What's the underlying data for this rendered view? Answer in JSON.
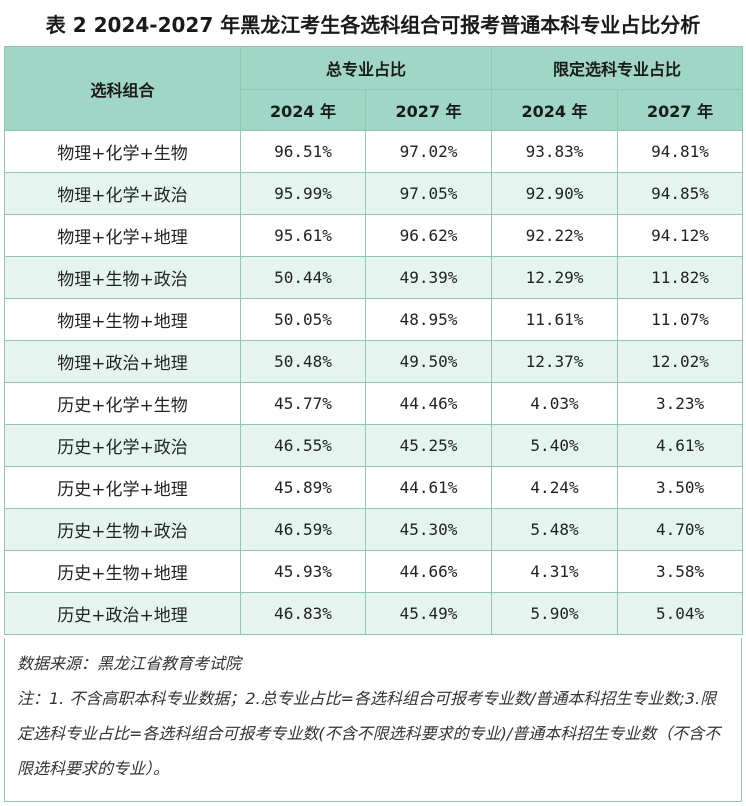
{
  "title": "表 2 2024-2027 年黑龙江考生各选科组合可报考普通本科专业占比分析",
  "header": {
    "combo_label": "选科组合",
    "group1": "总专业占比",
    "group2": "限定选科专业占比",
    "years": [
      "2024 年",
      "2027 年",
      "2024 年",
      "2027 年"
    ]
  },
  "rows": [
    {
      "combo": "物理+化学+生物",
      "v": [
        "96.51%",
        "97.02%",
        "93.83%",
        "94.81%"
      ]
    },
    {
      "combo": "物理+化学+政治",
      "v": [
        "95.99%",
        "97.05%",
        "92.90%",
        "94.85%"
      ]
    },
    {
      "combo": "物理+化学+地理",
      "v": [
        "95.61%",
        "96.62%",
        "92.22%",
        "94.12%"
      ]
    },
    {
      "combo": "物理+生物+政治",
      "v": [
        "50.44%",
        "49.39%",
        "12.29%",
        "11.82%"
      ]
    },
    {
      "combo": "物理+生物+地理",
      "v": [
        "50.05%",
        "48.95%",
        "11.61%",
        "11.07%"
      ]
    },
    {
      "combo": "物理+政治+地理",
      "v": [
        "50.48%",
        "49.50%",
        "12.37%",
        "12.02%"
      ]
    },
    {
      "combo": "历史+化学+生物",
      "v": [
        "45.77%",
        "44.46%",
        "4.03%",
        "3.23%"
      ]
    },
    {
      "combo": "历史+化学+政治",
      "v": [
        "46.55%",
        "45.25%",
        "5.40%",
        "4.61%"
      ]
    },
    {
      "combo": "历史+化学+地理",
      "v": [
        "45.89%",
        "44.61%",
        "4.24%",
        "3.50%"
      ]
    },
    {
      "combo": "历史+生物+政治",
      "v": [
        "46.59%",
        "45.30%",
        "5.48%",
        "4.70%"
      ]
    },
    {
      "combo": "历史+生物+地理",
      "v": [
        "45.93%",
        "44.66%",
        "4.31%",
        "3.58%"
      ]
    },
    {
      "combo": "历史+政治+地理",
      "v": [
        "46.83%",
        "45.49%",
        "5.90%",
        "5.04%"
      ]
    }
  ],
  "notes": {
    "source": "数据来源：黑龙江省教育考试院",
    "note_text": "注：1. 不含高职本科专业数据；2.总专业占比=各选科组合可报考专业数/普通本科招生专业数;3.限定选科专业占比=各选科组合可报考专业数(不含不限选科要求的专业)/普通本科招生专业数（不含不限选科要求的专业）。"
  }
}
